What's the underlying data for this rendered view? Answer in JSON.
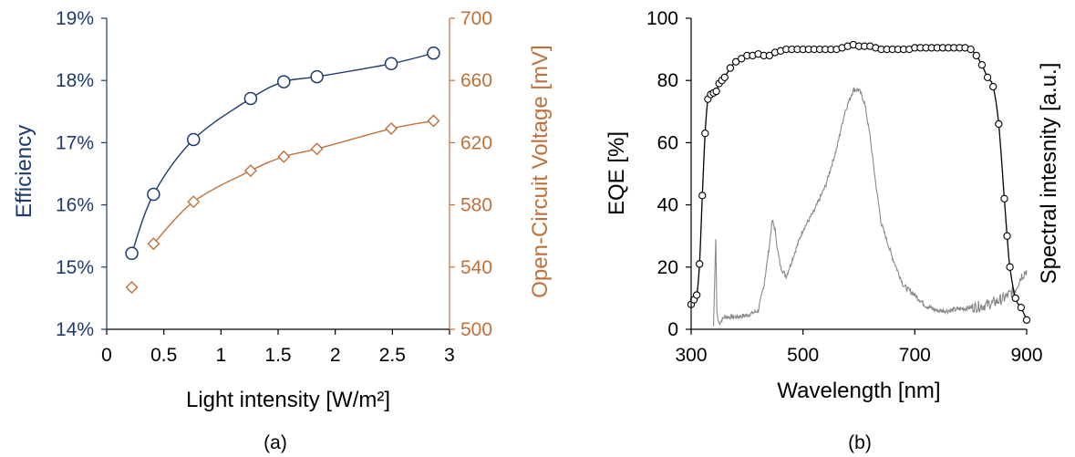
{
  "colors": {
    "efficiency": "#1f3a6e",
    "voltage": "#c0703a",
    "eqe": "#000000",
    "spectrum": "#888888",
    "axis": "#000000"
  },
  "chart_data": [
    {
      "type": "line",
      "panel_label": "(a)",
      "xlabel": "Light intensity [W/m²]",
      "x_ticks": [
        "0",
        "0.5",
        "1",
        "1.5",
        "2",
        "2.5",
        "3"
      ],
      "xlim": [
        0,
        3
      ],
      "y_left": {
        "label": "Efficiency",
        "ticks": [
          "14%",
          "15%",
          "16%",
          "17%",
          "18%",
          "19%"
        ],
        "ylim": [
          14,
          19
        ],
        "unit": "%"
      },
      "y_right": {
        "label": "Open-Circuit Voltage [mV]",
        "ticks": [
          "500",
          "540",
          "580",
          "620",
          "660",
          "700"
        ],
        "ylim": [
          500,
          700
        ]
      },
      "grid": false,
      "series": [
        {
          "key": "efficiency",
          "axis": "left",
          "marker": "circle",
          "x": [
            0.22,
            0.41,
            0.76,
            1.26,
            1.55,
            1.84,
            2.49,
            2.86
          ],
          "y": [
            15.22,
            16.17,
            17.05,
            17.71,
            17.98,
            18.06,
            18.27,
            18.44
          ]
        },
        {
          "key": "voltage",
          "axis": "right",
          "marker": "diamond",
          "x": [
            0.22,
            0.41,
            0.76,
            1.26,
            1.55,
            1.84,
            2.49,
            2.86
          ],
          "y": [
            527,
            555,
            582,
            602,
            611,
            616,
            629,
            634
          ]
        }
      ]
    },
    {
      "type": "line",
      "panel_label": "(b)",
      "xlabel": "Wavelength [nm]",
      "x_ticks": [
        "300",
        "500",
        "700",
        "900"
      ],
      "xlim": [
        300,
        900
      ],
      "y_left": {
        "label": "EQE [%]",
        "ticks": [
          "0",
          "20",
          "40",
          "60",
          "80",
          "100"
        ],
        "ylim": [
          0,
          100
        ]
      },
      "y_right": {
        "label": "Spectral intesnity [a.u.]",
        "ticks": []
      },
      "grid": false,
      "series": [
        {
          "key": "eqe",
          "axis": "left",
          "marker": "circle",
          "x": [
            300,
            305,
            310,
            315,
            320,
            325,
            330,
            335,
            340,
            345,
            350,
            355,
            360,
            370,
            380,
            390,
            400,
            410,
            420,
            430,
            440,
            450,
            460,
            470,
            480,
            490,
            500,
            510,
            520,
            530,
            540,
            550,
            560,
            570,
            580,
            590,
            600,
            610,
            620,
            630,
            640,
            650,
            660,
            670,
            680,
            690,
            700,
            710,
            720,
            730,
            740,
            750,
            760,
            770,
            780,
            790,
            800,
            810,
            820,
            830,
            840,
            850,
            860,
            865,
            870,
            880,
            890,
            900
          ],
          "y": [
            8,
            9.5,
            11,
            21,
            43,
            63,
            74,
            75.5,
            76,
            76.5,
            79,
            80,
            81,
            84,
            86,
            87,
            88,
            88,
            88.5,
            88,
            88,
            89,
            89.5,
            90,
            90,
            90,
            90,
            90,
            90,
            90,
            90,
            90,
            90,
            90.5,
            91,
            91.5,
            91,
            91,
            91,
            90.5,
            90,
            90,
            90,
            90,
            90,
            90,
            90.5,
            90.5,
            90.5,
            90.5,
            90.5,
            90.5,
            90.5,
            90.5,
            90.5,
            90.5,
            90,
            88,
            85,
            81,
            78,
            66,
            42,
            30,
            20,
            10,
            7,
            3
          ]
        },
        {
          "key": "spectrum",
          "axis": "right",
          "marker": "none",
          "x": [
            340,
            342,
            344,
            346,
            348,
            350,
            360,
            380,
            400,
            420,
            430,
            440,
            445,
            450,
            455,
            460,
            470,
            480,
            490,
            500,
            520,
            540,
            560,
            575,
            590,
            600,
            610,
            620,
            630,
            640,
            660,
            680,
            700,
            720,
            740,
            760,
            780,
            800,
            820,
            840,
            860,
            880,
            890,
            900
          ],
          "y": [
            1,
            15,
            29,
            6,
            3,
            2,
            4,
            4,
            4.5,
            6,
            14,
            27,
            35,
            32,
            25,
            20,
            17,
            22,
            27,
            32,
            38,
            46,
            58,
            70,
            77,
            77,
            73,
            62,
            47,
            34,
            23,
            14,
            11,
            7.5,
            6,
            6,
            6.5,
            7,
            7.5,
            8.5,
            10,
            13,
            17,
            19
          ]
        }
      ]
    }
  ]
}
